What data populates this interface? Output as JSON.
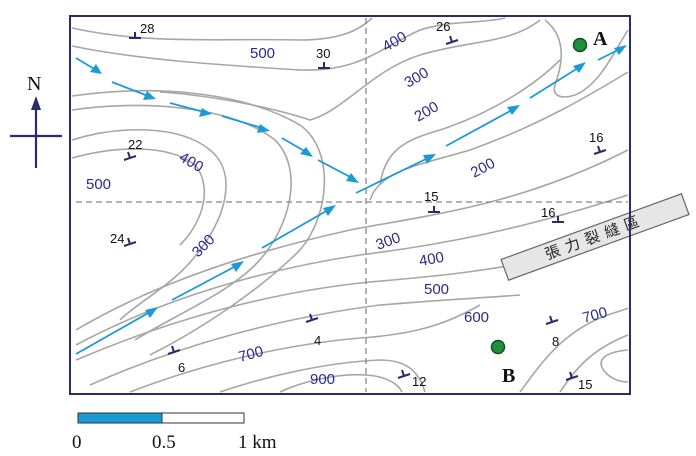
{
  "north_label": "N",
  "contours": [
    {
      "label": "500",
      "value": 500
    },
    {
      "label": "400",
      "value": 400
    },
    {
      "label": "300",
      "value": 300
    },
    {
      "label": "200",
      "value": 200
    },
    {
      "label": "600",
      "value": 600
    },
    {
      "label": "700",
      "value": 700
    },
    {
      "label": "900",
      "value": 900
    }
  ],
  "contour_labels": {
    "c500_nw": "500",
    "c400_n": "400",
    "c300_ne": "300",
    "c200_ne": "200",
    "c200_e": "200",
    "c400_w": "400",
    "c500_w": "500",
    "c300_sw": "300",
    "c300_c": "300",
    "c400_c": "400",
    "c500_c": "500",
    "c600": "600",
    "c700_s": "700",
    "c900": "900",
    "c700_e": "700"
  },
  "dip_labels": [
    "28",
    "30",
    "26",
    "22",
    "16",
    "15",
    "16",
    "24",
    "4",
    "6",
    "12",
    "8",
    "15"
  ],
  "wells": [
    {
      "name": "A"
    },
    {
      "name": "B"
    }
  ],
  "fracture_zone": {
    "label": "張力裂縫區"
  },
  "scale_bar": {
    "ticks": [
      "0",
      "0.5",
      "1 km"
    ]
  },
  "colors": {
    "frame": "#2b2a6b",
    "contour": "#a6a6a6",
    "flow_arrow": "#1a9ad6",
    "well": "#1e8f3a",
    "contour_label": "#2a2a8c"
  }
}
